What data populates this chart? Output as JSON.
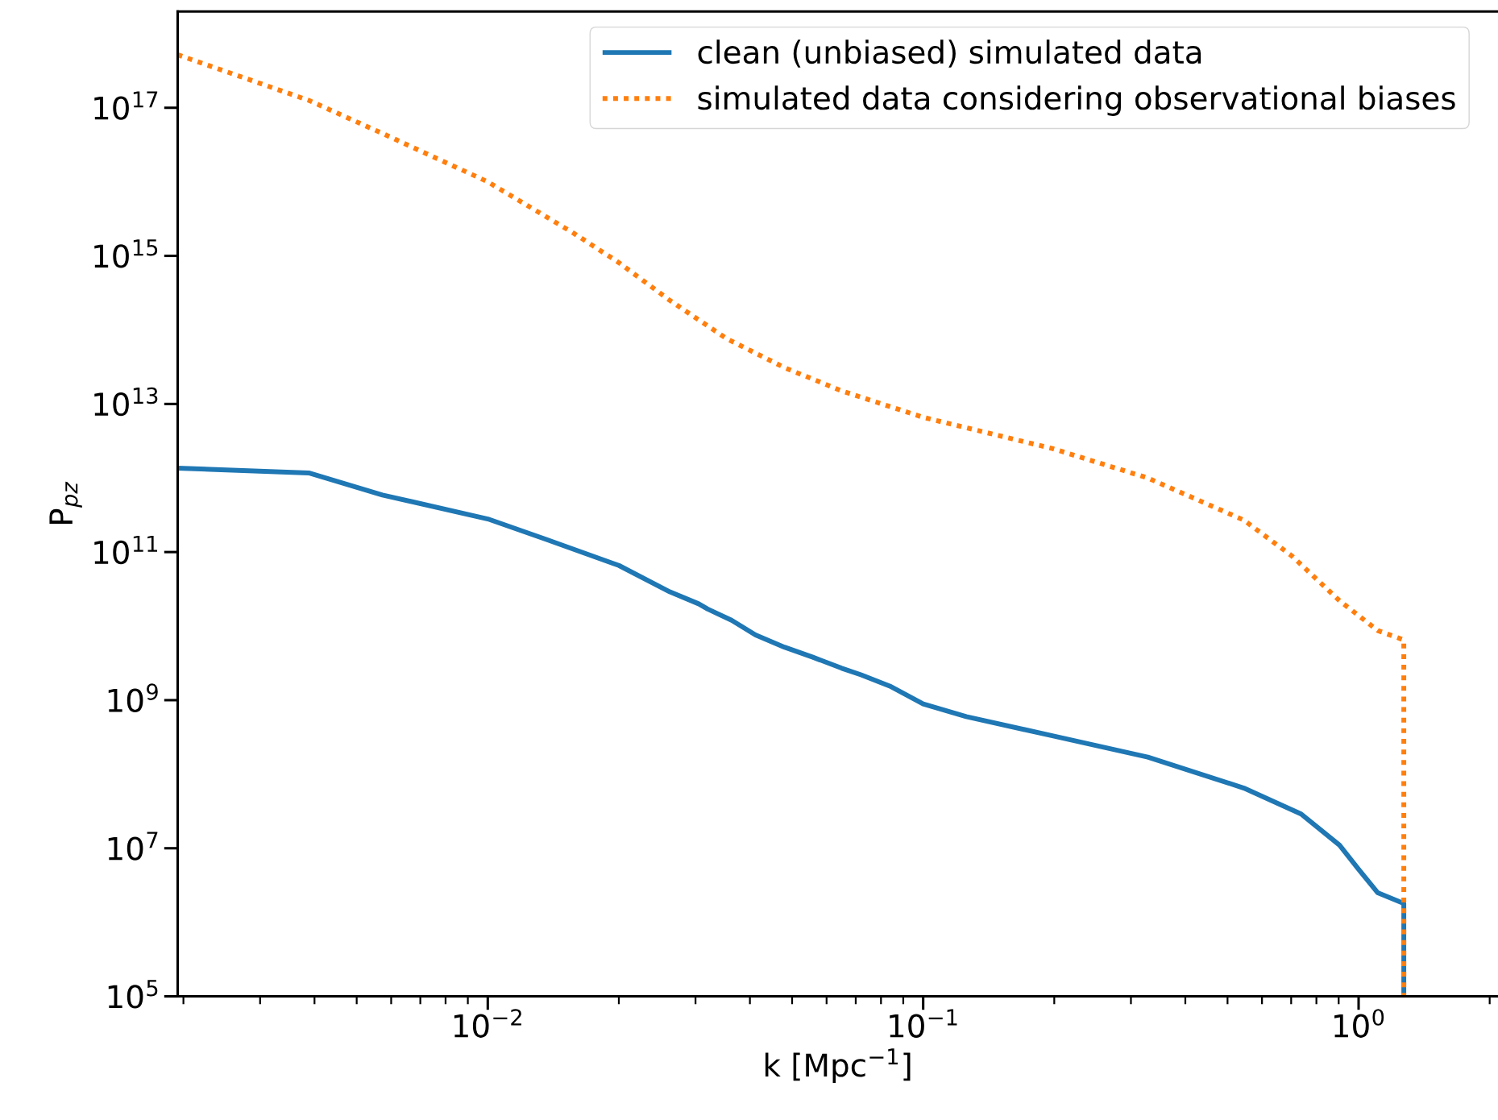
{
  "chart_data": {
    "type": "line",
    "xlabel": "k [Mpc$^{−1}$]",
    "ylabel": "P$_{pz}$",
    "log": "xy",
    "xlim": [
      0.00194,
      2.09
    ],
    "ylim": [
      100000.0,
      2e+18
    ],
    "xticks": [
      {
        "value": 0.01,
        "label": "10$^{−2}$"
      },
      {
        "value": 0.1,
        "label": "10$^{−1}$"
      },
      {
        "value": 1,
        "label": "10$^{0}$"
      }
    ],
    "yticks": [
      {
        "value": 100000.0,
        "label": "10$^{5}$"
      },
      {
        "value": 10000000.0,
        "label": "10$^{7}$"
      },
      {
        "value": 1000000000.0,
        "label": "10$^{9}$"
      },
      {
        "value": 100000000000.0,
        "label": "10$^{11}$"
      },
      {
        "value": 10000000000000.0,
        "label": "10$^{13}$"
      },
      {
        "value": 1000000000000000.0,
        "label": "10$^{15}$"
      },
      {
        "value": 1e+17,
        "label": "10$^{17}$"
      }
    ],
    "grid": false,
    "legend": "top right",
    "series": [
      {
        "name": "clean (unbiased) simulated data",
        "color": "#1f77b4",
        "line_style": "solid",
        "x": [
          0.00194,
          0.00388,
          0.00573,
          0.01,
          0.01355,
          0.02,
          0.0262,
          0.0305,
          0.032,
          0.0363,
          0.0412,
          0.048,
          0.0558,
          0.065,
          0.072,
          0.0838,
          0.1,
          0.1256,
          0.198,
          0.328,
          0.545,
          0.738,
          0.904,
          1.0,
          1.107,
          1.27,
          1.27
        ],
        "values": [
          1360000000000.0,
          1170000000000.0,
          590000000000.0,
          280000000000.0,
          150000000000.0,
          66000000000.0,
          29000000000.0,
          20000000000.0,
          17000000000.0,
          12000000000.0,
          7600000000.0,
          5200000000.0,
          3800000000.0,
          2700000000.0,
          2200000000.0,
          1550000000.0,
          890000000.0,
          600000000.0,
          330000000.0,
          170000000.0,
          65000000.0,
          29000000.0,
          11000000.0,
          5200000.0,
          2500000.0,
          1800000.0,
          100000.0
        ]
      },
      {
        "name": "simulated data considering observational biases",
        "color": "#ff7f0e",
        "line_style": "dotted",
        "x": [
          0.00194,
          0.00388,
          0.00573,
          0.01,
          0.0158,
          0.02,
          0.0262,
          0.0354,
          0.048,
          0.065,
          0.1,
          0.198,
          0.328,
          0.545,
          0.702,
          0.904,
          1.107,
          1.27,
          1.27
        ],
        "values": [
          5.2e+17,
          1.26e+17,
          4.5e+16,
          1e+16,
          2000000000000000.0,
          810000000000000.0,
          250000000000000.0,
          76000000000000.0,
          31000000000000.0,
          15000000000000.0,
          6600000000000.0,
          2500000000000.0,
          1000000000000.0,
          270000000000.0,
          89000000000.0,
          22000000000.0,
          8700000000.0,
          6500000000.0,
          100000.0
        ]
      }
    ]
  }
}
